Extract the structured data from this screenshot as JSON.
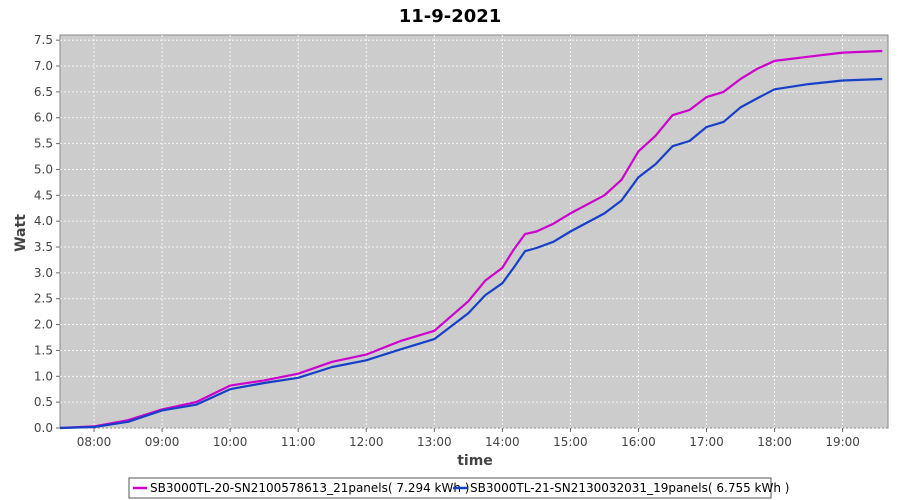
{
  "chart_data": {
    "type": "line",
    "title": "11-9-2021",
    "xlabel": "time",
    "ylabel": "Watt",
    "xlim": [
      "07:30",
      "19:40"
    ],
    "ylim": [
      0.0,
      7.6
    ],
    "x_ticks": [
      "08:00",
      "09:00",
      "10:00",
      "11:00",
      "12:00",
      "13:00",
      "14:00",
      "15:00",
      "16:00",
      "17:00",
      "18:00",
      "19:00"
    ],
    "y_ticks": [
      "0.0",
      "0.5",
      "1.0",
      "1.5",
      "2.0",
      "2.5",
      "3.0",
      "3.5",
      "4.0",
      "4.5",
      "5.0",
      "5.5",
      "6.0",
      "6.5",
      "7.0",
      "7.5"
    ],
    "grid": true,
    "legend_position": "bottom",
    "background": "#cccccc",
    "x": [
      "07:30",
      "08:00",
      "08:30",
      "09:00",
      "09:30",
      "10:00",
      "10:30",
      "11:00",
      "11:30",
      "12:00",
      "12:30",
      "13:00",
      "13:30",
      "13:45",
      "14:00",
      "14:10",
      "14:20",
      "14:30",
      "14:45",
      "15:00",
      "15:30",
      "15:45",
      "16:00",
      "16:15",
      "16:30",
      "16:45",
      "17:00",
      "17:15",
      "17:30",
      "17:45",
      "18:00",
      "18:30",
      "19:00",
      "19:35"
    ],
    "series": [
      {
        "name": "SB3000TL-20-SN2100578613_21panels( 7.294 kWh )",
        "color": "#cc00cc",
        "values": [
          0.0,
          0.03,
          0.15,
          0.36,
          0.5,
          0.82,
          0.92,
          1.05,
          1.28,
          1.42,
          1.68,
          1.88,
          2.45,
          2.85,
          3.1,
          3.45,
          3.75,
          3.8,
          3.95,
          4.15,
          4.5,
          4.8,
          5.35,
          5.65,
          6.05,
          6.15,
          6.4,
          6.5,
          6.75,
          6.95,
          7.1,
          7.18,
          7.26,
          7.29
        ]
      },
      {
        "name": "SB3000TL-21-SN2130032031_19panels( 6.755 kWh )",
        "color": "#1740c8",
        "values": [
          0.0,
          0.02,
          0.12,
          0.34,
          0.45,
          0.75,
          0.87,
          0.97,
          1.18,
          1.31,
          1.52,
          1.72,
          2.22,
          2.57,
          2.8,
          3.1,
          3.42,
          3.48,
          3.6,
          3.8,
          4.15,
          4.4,
          4.85,
          5.1,
          5.45,
          5.55,
          5.82,
          5.92,
          6.2,
          6.38,
          6.55,
          6.65,
          6.72,
          6.75
        ]
      }
    ]
  }
}
